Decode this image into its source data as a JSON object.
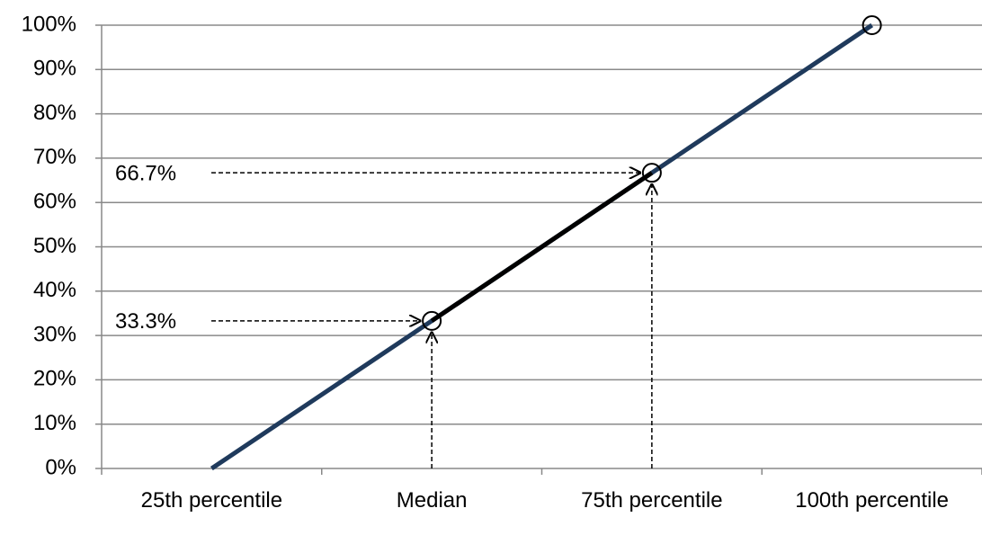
{
  "chart_data": {
    "type": "line",
    "categories": [
      "25th percentile",
      "Median",
      "75th percentile",
      "100th percentile"
    ],
    "values": [
      0,
      33.3,
      66.7,
      100
    ],
    "color": "#1f3a5c",
    "highlight_range": [
      "Median",
      "75th percentile"
    ],
    "highlight_color": "#000000",
    "markers": [
      false,
      true,
      true,
      true
    ],
    "ylim": [
      0,
      100
    ],
    "yticks": [
      {
        "value": 0,
        "label": "0%"
      },
      {
        "value": 10,
        "label": "10%"
      },
      {
        "value": 20,
        "label": "20%"
      },
      {
        "value": 30,
        "label": "30%"
      },
      {
        "value": 40,
        "label": "40%"
      },
      {
        "value": 50,
        "label": "50%"
      },
      {
        "value": 60,
        "label": "60%"
      },
      {
        "value": 70,
        "label": "70%"
      },
      {
        "value": 80,
        "label": "80%"
      },
      {
        "value": 90,
        "label": "90%"
      },
      {
        "value": 100,
        "label": "100%"
      }
    ],
    "grid": true,
    "annotations": [
      {
        "label": "33.3%",
        "value": 33.3,
        "category": "Median"
      },
      {
        "label": "66.7%",
        "value": 66.7,
        "category": "75th percentile"
      }
    ]
  }
}
